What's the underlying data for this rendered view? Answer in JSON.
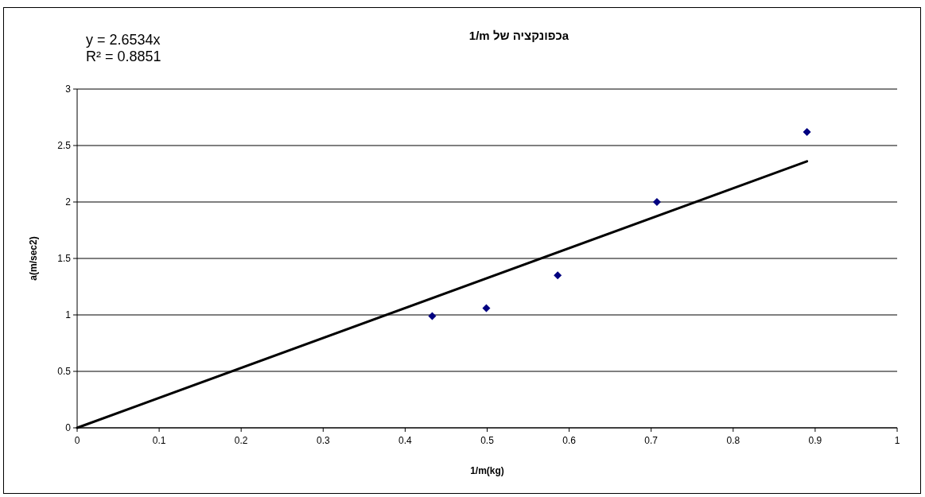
{
  "chart_data": {
    "type": "scatter",
    "title": "aכפונקציה של 1/m",
    "xlabel": "1/m(kg)",
    "ylabel": "a(m/sec2)",
    "annotations": [
      "y = 2.6534x",
      "R² = 0.8851"
    ],
    "series": [
      {
        "type": "scatter",
        "color": "#000080",
        "marker": "diamond",
        "x": [
          0.433,
          0.499,
          0.586,
          0.707,
          0.89
        ],
        "values": [
          0.99,
          1.06,
          1.35,
          2.0,
          2.62
        ]
      },
      {
        "type": "line",
        "color": "#000000",
        "marker": "none",
        "x": [
          0,
          0.89
        ],
        "values": [
          0,
          2.36
        ]
      }
    ],
    "xlim": [
      0,
      1
    ],
    "xticks": [
      0,
      0.1,
      0.2,
      0.3,
      0.4,
      0.5,
      0.6,
      0.7,
      0.8,
      0.9,
      1
    ],
    "ylim": [
      0,
      3
    ],
    "yticks": [
      0,
      0.5,
      1,
      1.5,
      2,
      2.5,
      3
    ],
    "grid": "y"
  }
}
